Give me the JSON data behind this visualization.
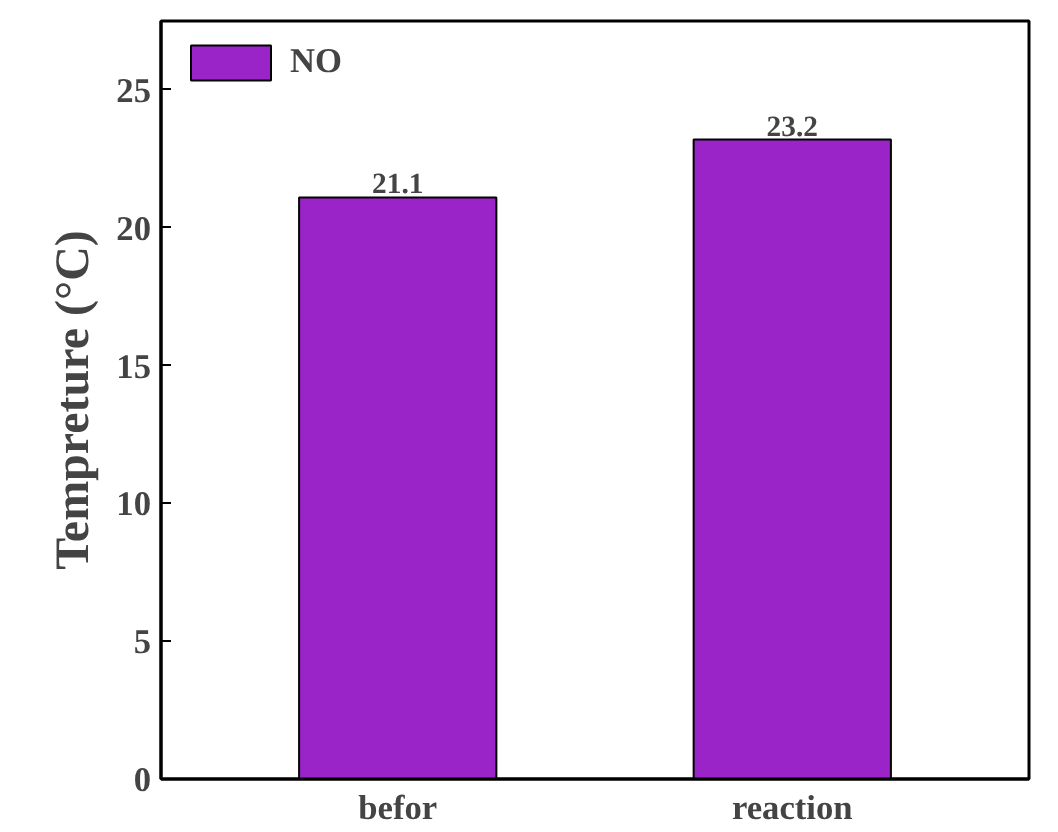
{
  "chart_data": {
    "type": "bar",
    "ylabel": "Tempreture (°C)",
    "categories": [
      "befor",
      "reaction"
    ],
    "series": [
      {
        "name": "NO",
        "color": "#9a24c8",
        "values": [
          21.1,
          23.2
        ]
      }
    ],
    "ylim": [
      0,
      27.5
    ],
    "yticks": [
      0,
      5,
      10,
      15,
      20,
      25
    ],
    "data_labels": true,
    "legend": "top left",
    "grid": false
  }
}
